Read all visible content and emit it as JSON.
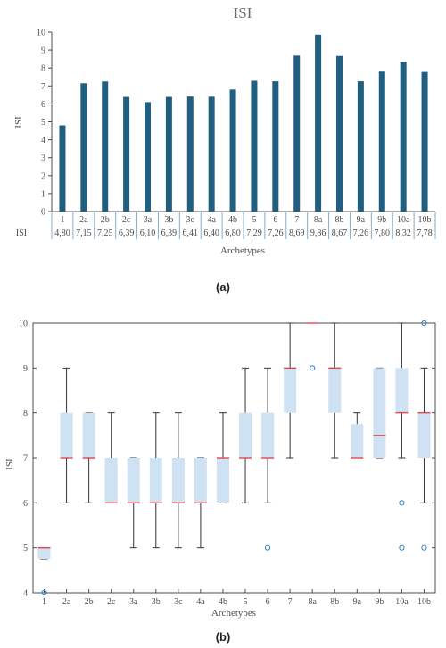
{
  "figure": {
    "caption_a": "(a)",
    "caption_b": "(b)"
  },
  "colors": {
    "bar": "#1f5f7f",
    "box_fill": "#cfe2f3",
    "median": "#e0474c",
    "outlier": "#2f80d0",
    "whisker": "#333333",
    "axis": "#4d4d4d"
  },
  "chart_data": [
    {
      "type": "bar",
      "title": "ISI",
      "xlabel": "Archetypes",
      "ylabel": "ISI",
      "ylim": [
        0,
        10
      ],
      "yticks": [
        0,
        1,
        2,
        3,
        4,
        5,
        6,
        7,
        8,
        9,
        10
      ],
      "grid": false,
      "categories": [
        "1",
        "2a",
        "2b",
        "2c",
        "3a",
        "3b",
        "3c",
        "4a",
        "4b",
        "5",
        "6",
        "7",
        "8a",
        "8b",
        "9a",
        "9b",
        "10a",
        "10b"
      ],
      "values": [
        4.8,
        7.15,
        7.25,
        6.39,
        6.1,
        6.39,
        6.41,
        6.4,
        6.8,
        7.29,
        7.26,
        8.69,
        9.86,
        8.67,
        7.26,
        7.8,
        8.32,
        7.78
      ],
      "table_row_label": "ISI",
      "value_labels": [
        "4,80",
        "7,15",
        "7,25",
        "6,39",
        "6,10",
        "6,39",
        "6,41",
        "6,40",
        "6,80",
        "7,29",
        "7,26",
        "8,69",
        "9,86",
        "8,67",
        "7,26",
        "7,80",
        "8,32",
        "7,78"
      ]
    },
    {
      "type": "box",
      "xlabel": "Archetypes",
      "ylabel": "ISI",
      "ylim": [
        4,
        10
      ],
      "yticks": [
        4,
        5,
        6,
        7,
        8,
        9,
        10
      ],
      "grid": false,
      "categories": [
        "1",
        "2a",
        "2b",
        "2c",
        "3a",
        "3b",
        "3c",
        "4a",
        "4b",
        "5",
        "6",
        "7",
        "8a",
        "8b",
        "9a",
        "9b",
        "10a",
        "10b"
      ],
      "boxes": [
        {
          "whislo": 4.75,
          "q1": 4.75,
          "med": 5,
          "q3": 5,
          "whishi": 5,
          "fliers": [
            4
          ]
        },
        {
          "whislo": 6,
          "q1": 7,
          "med": 7,
          "q3": 8,
          "whishi": 9,
          "fliers": []
        },
        {
          "whislo": 6,
          "q1": 7,
          "med": 7,
          "q3": 8,
          "whishi": 8,
          "fliers": []
        },
        {
          "whislo": 6,
          "q1": 6,
          "med": 6,
          "q3": 7,
          "whishi": 8,
          "fliers": []
        },
        {
          "whislo": 5,
          "q1": 6,
          "med": 6,
          "q3": 7,
          "whishi": 7,
          "fliers": []
        },
        {
          "whislo": 5,
          "q1": 6,
          "med": 6,
          "q3": 7,
          "whishi": 8,
          "fliers": []
        },
        {
          "whislo": 5,
          "q1": 6,
          "med": 6,
          "q3": 7,
          "whishi": 8,
          "fliers": []
        },
        {
          "whislo": 5,
          "q1": 6,
          "med": 6,
          "q3": 7,
          "whishi": 7,
          "fliers": []
        },
        {
          "whislo": 6,
          "q1": 6,
          "med": 7,
          "q3": 7,
          "whishi": 8,
          "fliers": []
        },
        {
          "whislo": 6,
          "q1": 7,
          "med": 7,
          "q3": 8,
          "whishi": 9,
          "fliers": []
        },
        {
          "whislo": 6,
          "q1": 7,
          "med": 7,
          "q3": 8,
          "whishi": 9,
          "fliers": [
            5
          ]
        },
        {
          "whislo": 7,
          "q1": 8,
          "med": 9,
          "q3": 9,
          "whishi": 10,
          "fliers": []
        },
        {
          "whislo": 10,
          "q1": 10,
          "med": 10,
          "q3": 10,
          "whishi": 10,
          "fliers": [
            9
          ]
        },
        {
          "whislo": 7,
          "q1": 8,
          "med": 9,
          "q3": 9,
          "whishi": 10,
          "fliers": []
        },
        {
          "whislo": 7,
          "q1": 7,
          "med": 7,
          "q3": 7.75,
          "whishi": 8,
          "fliers": []
        },
        {
          "whislo": 7,
          "q1": 7,
          "med": 7.5,
          "q3": 9,
          "whishi": 9,
          "fliers": []
        },
        {
          "whislo": 7,
          "q1": 8,
          "med": 8,
          "q3": 9,
          "whishi": 10,
          "fliers": [
            6,
            5
          ]
        },
        {
          "whislo": 6,
          "q1": 7,
          "med": 8,
          "q3": 8,
          "whishi": 9,
          "fliers": [
            10,
            5
          ]
        }
      ]
    }
  ]
}
